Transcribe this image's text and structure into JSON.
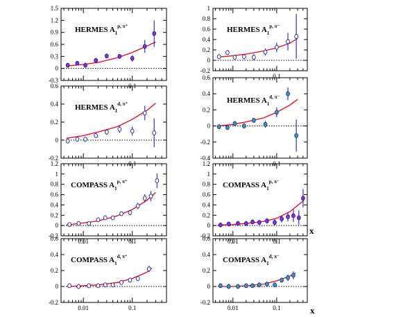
{
  "figure": {
    "x_axis_label": "x",
    "colors": {
      "curve": "#e8001c",
      "error_bar": "#3030e0",
      "marker_fill_proton": "#8e2ad6",
      "marker_fill_deuteron": "#2aa6a6",
      "marker_fill_open": "#ffffff",
      "marker_edge": "#2020a0",
      "zero_line": "#000000"
    }
  },
  "chart_data": [
    {
      "id": "hermes-proton",
      "type": "scatter",
      "title": {
        "exp": "HERMES",
        "sym": "A",
        "sub": "1",
        "sup": "p, π⁺"
      },
      "xscale": "log",
      "xlim": [
        0.0035,
        0.5
      ],
      "ylim": [
        -0.3,
        1.5
      ],
      "yticks": [
        "-0.3",
        "0",
        "0.3",
        "0.6",
        "0.9",
        "1.2",
        "1.5"
      ],
      "xticks": [
        "0.1"
      ],
      "grid": false,
      "marker_fill": "proton",
      "points": [
        {
          "x": 0.0048,
          "y": 0.08,
          "err": 0.03
        },
        {
          "x": 0.0075,
          "y": 0.13,
          "err": 0.03
        },
        {
          "x": 0.011,
          "y": 0.08,
          "err": 0.03
        },
        {
          "x": 0.018,
          "y": 0.2,
          "err": 0.04
        },
        {
          "x": 0.03,
          "y": 0.31,
          "err": 0.05
        },
        {
          "x": 0.055,
          "y": 0.3,
          "err": 0.06
        },
        {
          "x": 0.1,
          "y": 0.25,
          "err": 0.08
        },
        {
          "x": 0.18,
          "y": 0.55,
          "err": 0.16
        },
        {
          "x": 0.28,
          "y": 0.87,
          "err": 0.33
        }
      ],
      "curve": [
        {
          "x": 0.0045,
          "y": 0.06
        },
        {
          "x": 0.01,
          "y": 0.1
        },
        {
          "x": 0.02,
          "y": 0.15
        },
        {
          "x": 0.05,
          "y": 0.27
        },
        {
          "x": 0.1,
          "y": 0.4
        },
        {
          "x": 0.2,
          "y": 0.56
        },
        {
          "x": 0.3,
          "y": 0.66
        }
      ]
    },
    {
      "id": "hermes-neutron",
      "type": "scatter",
      "title": {
        "exp": "HERMES",
        "sym": "A",
        "sub": "1",
        "sup": "p, π⁻"
      },
      "xscale": "log",
      "xlim": [
        0.0035,
        0.5
      ],
      "ylim": [
        -0.2,
        1.0
      ],
      "yticks": [
        "-0.2",
        "0",
        "0.2",
        "0.4",
        "0.6",
        "0.8",
        "1"
      ],
      "xticks": [
        "0.1"
      ],
      "grid": false,
      "marker_fill": "open",
      "points": [
        {
          "x": 0.0048,
          "y": 0.07,
          "err": 0.03
        },
        {
          "x": 0.0075,
          "y": 0.15,
          "err": 0.03
        },
        {
          "x": 0.011,
          "y": 0.06,
          "err": 0.04
        },
        {
          "x": 0.018,
          "y": 0.07,
          "err": 0.05
        },
        {
          "x": 0.03,
          "y": 0.06,
          "err": 0.06
        },
        {
          "x": 0.055,
          "y": 0.16,
          "err": 0.07
        },
        {
          "x": 0.1,
          "y": 0.25,
          "err": 0.09
        },
        {
          "x": 0.18,
          "y": 0.36,
          "err": 0.17
        },
        {
          "x": 0.28,
          "y": 0.46,
          "err": 0.43
        }
      ],
      "curve": [
        {
          "x": 0.0045,
          "y": 0.06
        },
        {
          "x": 0.01,
          "y": 0.09
        },
        {
          "x": 0.02,
          "y": 0.12
        },
        {
          "x": 0.05,
          "y": 0.18
        },
        {
          "x": 0.1,
          "y": 0.24
        },
        {
          "x": 0.2,
          "y": 0.33
        },
        {
          "x": 0.3,
          "y": 0.42
        }
      ]
    },
    {
      "id": "hermes-deuteron-plus",
      "type": "scatter",
      "title": {
        "exp": "HERMES",
        "sym": "A",
        "sub": "1",
        "sup": "d, π⁺"
      },
      "xscale": "log",
      "xlim": [
        0.0035,
        0.5
      ],
      "ylim": [
        -0.2,
        0.6
      ],
      "yticks": [
        "-0.2",
        "0",
        "0.2",
        "0.4",
        "0.6"
      ],
      "xticks": [
        "0.1"
      ],
      "grid": false,
      "marker_fill": "open",
      "points": [
        {
          "x": 0.0048,
          "y": -0.01,
          "err": 0.02
        },
        {
          "x": 0.0075,
          "y": 0.01,
          "err": 0.02
        },
        {
          "x": 0.011,
          "y": 0.01,
          "err": 0.02
        },
        {
          "x": 0.018,
          "y": 0.05,
          "err": 0.02
        },
        {
          "x": 0.03,
          "y": 0.09,
          "err": 0.03
        },
        {
          "x": 0.055,
          "y": 0.12,
          "err": 0.04
        },
        {
          "x": 0.1,
          "y": 0.1,
          "err": 0.05
        },
        {
          "x": 0.18,
          "y": 0.3,
          "err": 0.08
        },
        {
          "x": 0.28,
          "y": 0.08,
          "err": 0.16
        }
      ],
      "curve": [
        {
          "x": 0.0045,
          "y": 0.02
        },
        {
          "x": 0.01,
          "y": 0.05
        },
        {
          "x": 0.02,
          "y": 0.09
        },
        {
          "x": 0.05,
          "y": 0.15
        },
        {
          "x": 0.1,
          "y": 0.23
        },
        {
          "x": 0.2,
          "y": 0.33
        },
        {
          "x": 0.3,
          "y": 0.41
        }
      ]
    },
    {
      "id": "hermes-deuteron-minus",
      "type": "scatter",
      "title": {
        "exp": "HERMES",
        "sym": "A",
        "sub": "1",
        "sup": "d, π⁻"
      },
      "xscale": "log",
      "xlim": [
        0.0035,
        0.5
      ],
      "ylim": [
        -0.4,
        0.6
      ],
      "yticks": [
        "-0.4",
        "-0.2",
        "0",
        "0.2",
        "0.4",
        "0.6"
      ],
      "xticks": [
        "0.1"
      ],
      "grid": false,
      "marker_fill": "deuteron",
      "points": [
        {
          "x": 0.0048,
          "y": -0.01,
          "err": 0.02
        },
        {
          "x": 0.0075,
          "y": -0.02,
          "err": 0.02
        },
        {
          "x": 0.011,
          "y": 0.03,
          "err": 0.02
        },
        {
          "x": 0.018,
          "y": 0.0,
          "err": 0.03
        },
        {
          "x": 0.03,
          "y": 0.07,
          "err": 0.03
        },
        {
          "x": 0.055,
          "y": 0.02,
          "err": 0.04
        },
        {
          "x": 0.1,
          "y": 0.17,
          "err": 0.06
        },
        {
          "x": 0.18,
          "y": 0.4,
          "err": 0.08
        },
        {
          "x": 0.28,
          "y": -0.12,
          "err": 0.2
        }
      ],
      "curve": [
        {
          "x": 0.0045,
          "y": 0.0
        },
        {
          "x": 0.01,
          "y": 0.02
        },
        {
          "x": 0.02,
          "y": 0.05
        },
        {
          "x": 0.05,
          "y": 0.1
        },
        {
          "x": 0.1,
          "y": 0.17
        },
        {
          "x": 0.2,
          "y": 0.26
        },
        {
          "x": 0.3,
          "y": 0.33
        }
      ]
    },
    {
      "id": "compass-proton-plus",
      "type": "scatter",
      "title": {
        "exp": "COMPASS",
        "sym": "A",
        "sub": "1",
        "sup": "p, π⁺"
      },
      "xscale": "log",
      "xlim": [
        0.0035,
        0.5
      ],
      "ylim": [
        -0.2,
        1.2
      ],
      "yticks": [
        "-0.2",
        "0",
        "0.2",
        "0.4",
        "0.6",
        "0.8",
        "1",
        "1.2"
      ],
      "xticks": [
        "0.01",
        "0.1"
      ],
      "grid": false,
      "marker_fill": "open",
      "points": [
        {
          "x": 0.0052,
          "y": 0.02,
          "err": 0.03
        },
        {
          "x": 0.008,
          "y": 0.04,
          "err": 0.03
        },
        {
          "x": 0.013,
          "y": 0.04,
          "err": 0.03
        },
        {
          "x": 0.02,
          "y": 0.11,
          "err": 0.03
        },
        {
          "x": 0.028,
          "y": 0.15,
          "err": 0.03
        },
        {
          "x": 0.04,
          "y": 0.15,
          "err": 0.04
        },
        {
          "x": 0.06,
          "y": 0.23,
          "err": 0.04
        },
        {
          "x": 0.09,
          "y": 0.25,
          "err": 0.05
        },
        {
          "x": 0.13,
          "y": 0.38,
          "err": 0.06
        },
        {
          "x": 0.18,
          "y": 0.53,
          "err": 0.08
        },
        {
          "x": 0.24,
          "y": 0.57,
          "err": 0.1
        },
        {
          "x": 0.32,
          "y": 0.87,
          "err": 0.14
        }
      ],
      "curve": [
        {
          "x": 0.0045,
          "y": 0.01
        },
        {
          "x": 0.01,
          "y": 0.05
        },
        {
          "x": 0.02,
          "y": 0.09
        },
        {
          "x": 0.05,
          "y": 0.19
        },
        {
          "x": 0.1,
          "y": 0.31
        },
        {
          "x": 0.2,
          "y": 0.49
        },
        {
          "x": 0.3,
          "y": 0.64
        }
      ]
    },
    {
      "id": "compass-proton-minus",
      "type": "scatter",
      "title": {
        "exp": "COMPASS",
        "sym": "A",
        "sub": "1",
        "sup": "p, π⁻"
      },
      "xscale": "log",
      "xlim": [
        0.0035,
        0.5
      ],
      "ylim": [
        -0.2,
        1.2
      ],
      "yticks": [
        "-0.2",
        "0",
        "0.2",
        "0.4",
        "0.6",
        "0.8",
        "1",
        "1.2"
      ],
      "xticks": [
        "0.01",
        "0.1"
      ],
      "grid": false,
      "marker_fill": "proton",
      "points": [
        {
          "x": 0.0052,
          "y": 0.01,
          "err": 0.03
        },
        {
          "x": 0.008,
          "y": 0.03,
          "err": 0.03
        },
        {
          "x": 0.013,
          "y": 0.04,
          "err": 0.03
        },
        {
          "x": 0.02,
          "y": 0.04,
          "err": 0.03
        },
        {
          "x": 0.028,
          "y": 0.07,
          "err": 0.04
        },
        {
          "x": 0.04,
          "y": 0.06,
          "err": 0.04
        },
        {
          "x": 0.06,
          "y": 0.09,
          "err": 0.05
        },
        {
          "x": 0.09,
          "y": 0.06,
          "err": 0.06
        },
        {
          "x": 0.13,
          "y": 0.13,
          "err": 0.07
        },
        {
          "x": 0.18,
          "y": 0.17,
          "err": 0.09
        },
        {
          "x": 0.24,
          "y": 0.19,
          "err": 0.12
        },
        {
          "x": 0.32,
          "y": 0.15,
          "err": 0.14
        },
        {
          "x": 0.4,
          "y": 0.53,
          "err": 0.18
        }
      ],
      "curve": [
        {
          "x": 0.0045,
          "y": 0.01
        },
        {
          "x": 0.01,
          "y": 0.02
        },
        {
          "x": 0.02,
          "y": 0.04
        },
        {
          "x": 0.05,
          "y": 0.08
        },
        {
          "x": 0.1,
          "y": 0.14
        },
        {
          "x": 0.2,
          "y": 0.27
        },
        {
          "x": 0.42,
          "y": 0.49
        }
      ]
    },
    {
      "id": "compass-deuteron-plus",
      "type": "scatter",
      "title": {
        "exp": "COMPASS",
        "sym": "A",
        "sub": "1",
        "sup": "d, π⁺"
      },
      "xscale": "log",
      "xlim": [
        0.0035,
        0.5
      ],
      "ylim": [
        -0.2,
        0.6
      ],
      "yticks": [
        "-0.2",
        "0",
        "0.2",
        "0.4",
        "0.6"
      ],
      "xticks": [
        "0.01",
        "0.1"
      ],
      "grid": false,
      "marker_fill": "open",
      "points": [
        {
          "x": 0.0052,
          "y": 0.01,
          "err": 0.01
        },
        {
          "x": 0.008,
          "y": 0.0,
          "err": 0.01
        },
        {
          "x": 0.013,
          "y": 0.01,
          "err": 0.01
        },
        {
          "x": 0.02,
          "y": 0.01,
          "err": 0.01
        },
        {
          "x": 0.028,
          "y": 0.02,
          "err": 0.01
        },
        {
          "x": 0.04,
          "y": 0.02,
          "err": 0.02
        },
        {
          "x": 0.06,
          "y": 0.05,
          "err": 0.02
        },
        {
          "x": 0.09,
          "y": 0.08,
          "err": 0.02
        },
        {
          "x": 0.13,
          "y": 0.1,
          "err": 0.03
        },
        {
          "x": 0.22,
          "y": 0.22,
          "err": 0.04
        }
      ],
      "curve": [
        {
          "x": 0.0045,
          "y": 0.0
        },
        {
          "x": 0.01,
          "y": 0.01
        },
        {
          "x": 0.02,
          "y": 0.02
        },
        {
          "x": 0.05,
          "y": 0.05
        },
        {
          "x": 0.1,
          "y": 0.1
        },
        {
          "x": 0.2,
          "y": 0.18
        },
        {
          "x": 0.25,
          "y": 0.23
        }
      ]
    },
    {
      "id": "compass-deuteron-minus",
      "type": "scatter",
      "title": {
        "exp": "COMPASS",
        "sym": "A",
        "sub": "1",
        "sup": "d, π⁻"
      },
      "xscale": "log",
      "xlim": [
        0.0035,
        0.5
      ],
      "ylim": [
        -0.2,
        0.6
      ],
      "yticks": [
        "-0.2",
        "0",
        "0.2",
        "0.4",
        "0.6"
      ],
      "xticks": [
        "0.01",
        "0.1"
      ],
      "grid": false,
      "marker_fill": "deuteron",
      "points": [
        {
          "x": 0.0052,
          "y": 0.01,
          "err": 0.01
        },
        {
          "x": 0.008,
          "y": 0.0,
          "err": 0.01
        },
        {
          "x": 0.013,
          "y": 0.0,
          "err": 0.01
        },
        {
          "x": 0.02,
          "y": 0.01,
          "err": 0.01
        },
        {
          "x": 0.028,
          "y": 0.01,
          "err": 0.01
        },
        {
          "x": 0.04,
          "y": 0.02,
          "err": 0.02
        },
        {
          "x": 0.06,
          "y": 0.03,
          "err": 0.02
        },
        {
          "x": 0.09,
          "y": 0.02,
          "err": 0.02
        },
        {
          "x": 0.13,
          "y": 0.08,
          "err": 0.03
        },
        {
          "x": 0.18,
          "y": 0.11,
          "err": 0.04
        },
        {
          "x": 0.24,
          "y": 0.14,
          "err": 0.05
        }
      ],
      "curve": [
        {
          "x": 0.0045,
          "y": 0.0
        },
        {
          "x": 0.01,
          "y": 0.0
        },
        {
          "x": 0.02,
          "y": 0.01
        },
        {
          "x": 0.05,
          "y": 0.03
        },
        {
          "x": 0.1,
          "y": 0.07
        },
        {
          "x": 0.2,
          "y": 0.13
        },
        {
          "x": 0.27,
          "y": 0.17
        }
      ]
    }
  ]
}
